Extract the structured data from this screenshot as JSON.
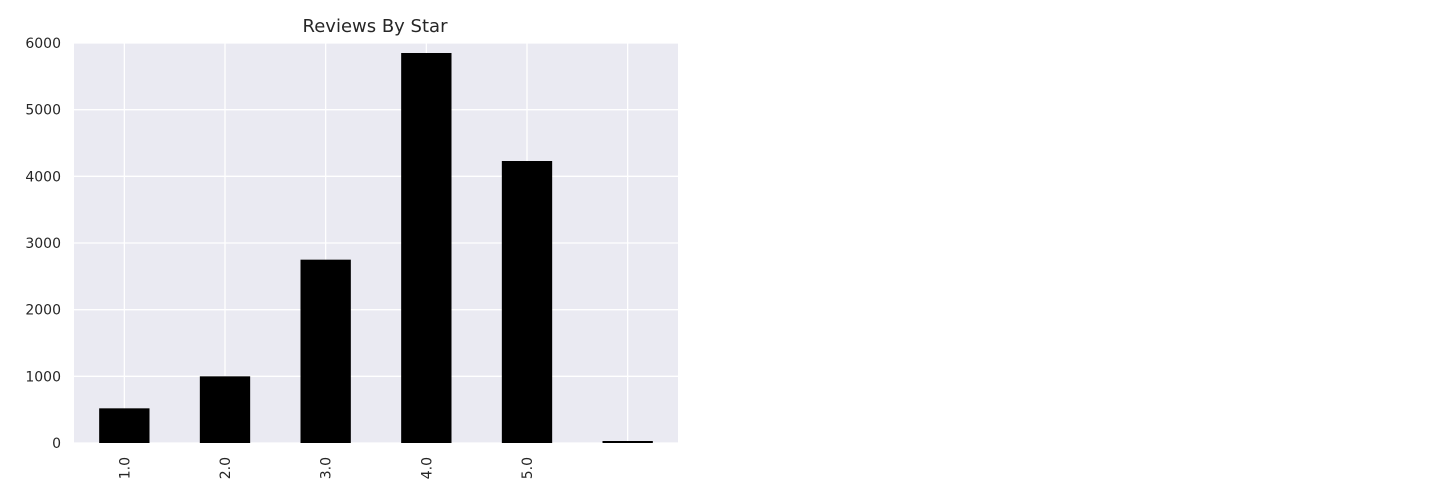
{
  "chart_data": {
    "type": "bar",
    "title": "Reviews By Star",
    "xlabel": "",
    "ylabel": "",
    "categories": [
      "1.0",
      "2.0",
      "3.0",
      "4.0",
      "5.0",
      ""
    ],
    "values": [
      520,
      1000,
      2750,
      5850,
      4230,
      30
    ],
    "ylim": [
      0,
      6000
    ],
    "yticks": [
      0,
      1000,
      2000,
      3000,
      4000,
      5000,
      6000
    ],
    "grid": true,
    "legend": "none",
    "colors": {
      "bar": "#000000",
      "plot_background": "#eaeaf2",
      "grid": "#ffffff",
      "text": "#262626"
    }
  }
}
